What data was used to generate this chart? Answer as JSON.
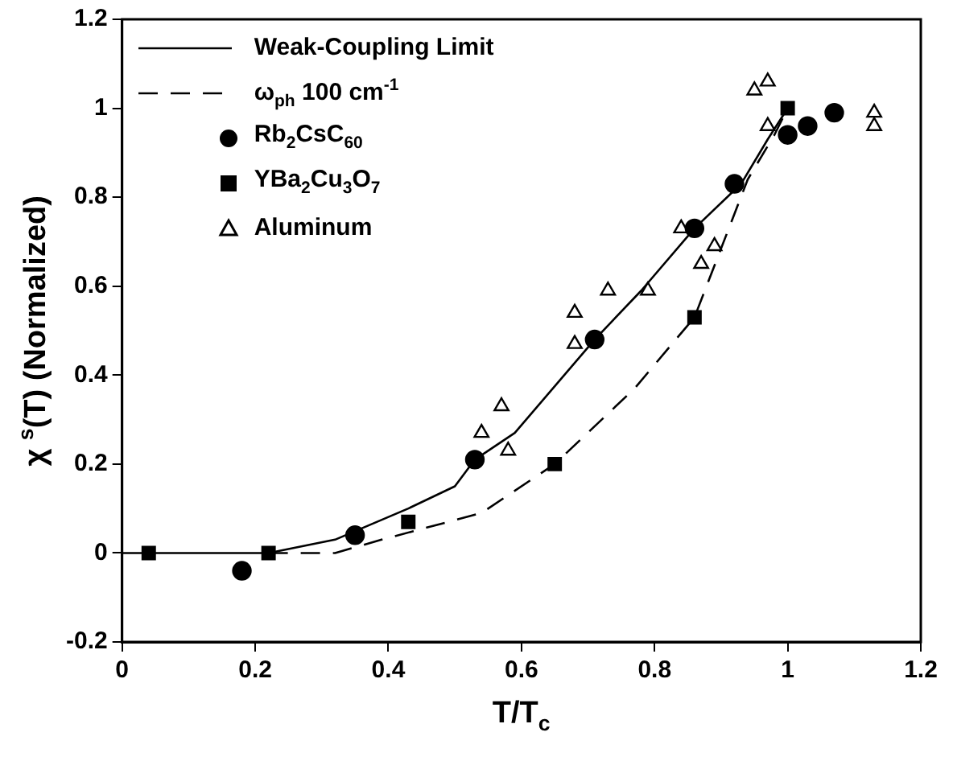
{
  "chart_data": {
    "type": "scatter",
    "xlabel": "T/T$_{c}$",
    "ylabel": "χ $^{s}$(T) (Normalized)",
    "xlim": [
      0,
      1.2
    ],
    "xticks": [
      0,
      0.2,
      0.4,
      0.6,
      0.8,
      1,
      1.2
    ],
    "ylim": [
      -0.2,
      1.2
    ],
    "yticks": [
      -0.2,
      0,
      0.2,
      0.4,
      0.6,
      0.8,
      1,
      1.2
    ],
    "grid": false,
    "legend": "top left",
    "series": [
      {
        "name": "Weak-Coupling Limit",
        "type": "line",
        "line_style": "solid",
        "marker": "none",
        "color": "#000000",
        "x": [
          0,
          0.22,
          0.32,
          0.43,
          0.5,
          0.53,
          0.59,
          0.71,
          0.78,
          0.86,
          0.93,
          0.97,
          1.0
        ],
        "values": [
          0,
          0,
          0.03,
          0.1,
          0.15,
          0.21,
          0.27,
          0.48,
          0.59,
          0.73,
          0.83,
          0.93,
          1.0
        ]
      },
      {
        "name": "ω$_{ph}$ 100 cm$^{-1}$",
        "type": "line",
        "line_style": "dashed",
        "marker": "none",
        "color": "#000000",
        "x": [
          0.22,
          0.32,
          0.39,
          0.54,
          0.62,
          0.65,
          0.77,
          0.86,
          0.94,
          0.98,
          1.0
        ],
        "values": [
          0,
          0,
          0.03,
          0.09,
          0.17,
          0.2,
          0.37,
          0.53,
          0.84,
          0.94,
          1.0
        ]
      },
      {
        "name": "Rb$_{2}$CsC$_{60}$",
        "marker": "circle",
        "color": "#000000",
        "x": [
          0.18,
          0.35,
          0.53,
          0.71,
          0.86,
          0.92,
          1.0,
          1.03,
          1.07
        ],
        "values": [
          -0.04,
          0.04,
          0.21,
          0.48,
          0.73,
          0.83,
          0.94,
          0.96,
          0.99
        ]
      },
      {
        "name": "YBa$_{2}$Cu$_{3}$O$_{7}$",
        "marker": "square",
        "color": "#000000",
        "x": [
          0.04,
          0.22,
          0.43,
          0.65,
          0.86,
          1.0
        ],
        "values": [
          0,
          0,
          0.07,
          0.2,
          0.53,
          1.0
        ]
      },
      {
        "name": "Aluminum",
        "marker": "triangle",
        "color": "#000000",
        "x": [
          0.54,
          0.57,
          0.58,
          0.68,
          0.68,
          0.73,
          0.79,
          0.84,
          0.87,
          0.89,
          0.92,
          0.95,
          0.97,
          0.97,
          1.13,
          1.13
        ],
        "values": [
          0.27,
          0.33,
          0.23,
          0.47,
          0.54,
          0.59,
          0.59,
          0.73,
          0.65,
          0.69,
          null,
          1.04,
          1.06,
          0.96,
          0.99,
          0.96
        ]
      }
    ]
  }
}
